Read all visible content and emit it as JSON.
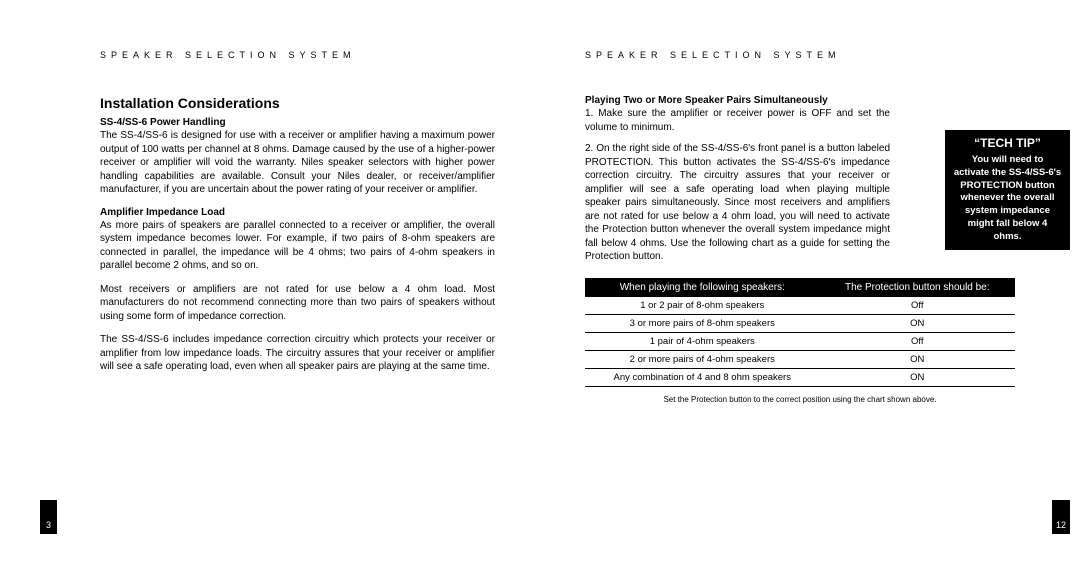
{
  "header": "SPEAKER SELECTION SYSTEM",
  "left": {
    "pageNum": "3",
    "title": "Installation Considerations",
    "sub1Title": "SS-4/SS-6 Power Handling",
    "sub1Text": "The SS-4/SS-6 is designed for use with a receiver or amplifier having a maximum power output of 100 watts per channel at 8 ohms. Damage caused by the use of a higher-power receiver or amplifier will void the warranty. Niles speaker selectors with higher power handling capabilities are available. Consult your Niles dealer, or receiver/amplifier manufacturer, if you are uncertain about the power rating of your receiver or amplifier.",
    "sub2Title": "Amplifier Impedance Load",
    "sub2TextA": "As more pairs of speakers are parallel connected to a receiver or amplifier, the overall system impedance becomes lower. For example, if two pairs of 8-ohm speakers are connected in parallel, the impedance will be 4 ohms; two pairs of 4-ohm speakers in parallel become 2 ohms, and so on.",
    "sub2TextB": "Most receivers or amplifiers are not rated for use below a 4 ohm load. Most manufacturers do not recommend connecting more than two pairs of speakers without using some form of impedance correction.",
    "sub2TextC": "The SS-4/SS-6 includes impedance correction circuitry which protects your receiver or amplifier from low impedance loads. The circuitry assures that your receiver or amplifier will see a safe operating load, even when all speaker pairs are playing at the same time."
  },
  "right": {
    "pageNum": "12",
    "title": "Playing Two or More Speaker Pairs Simultaneously",
    "step1": "1. Make sure the amplifier or receiver power is OFF and set the volume to minimum.",
    "step2": "2. On the right side of the SS-4/SS-6's front panel is a button labeled PROTECTION. This button activates the SS-4/SS-6's impedance correction circuitry. The circuitry assures that your receiver or amplifier will see a safe operating load when playing multiple speaker pairs simultaneously. Since most receivers and amplifiers are not rated for use below a 4 ohm load, you will need to activate the Protection button whenever the overall system impedance might fall below 4 ohms. Use the following chart as a guide for setting the Protection button.",
    "table": {
      "headerLeft": "When playing the following speakers:",
      "headerRight": "The Protection button should be:",
      "rows": [
        [
          "1 or 2 pair of 8-ohm speakers",
          "Off"
        ],
        [
          "3 or more pairs of 8-ohm speakers",
          "ON"
        ],
        [
          "1 pair of 4-ohm speakers",
          "Off"
        ],
        [
          "2 or more pairs of 4-ohm speakers",
          "ON"
        ],
        [
          "Any combination of 4 and 8 ohm speakers",
          "ON"
        ]
      ],
      "caption": "Set the Protection button to the correct position using the chart shown above."
    },
    "techTip": {
      "title": "“TECH TIP”",
      "text": "You will need to activate the SS-4/SS-6's PROTECTION button whenever the overall system impedance might fall below 4 ohms."
    }
  }
}
